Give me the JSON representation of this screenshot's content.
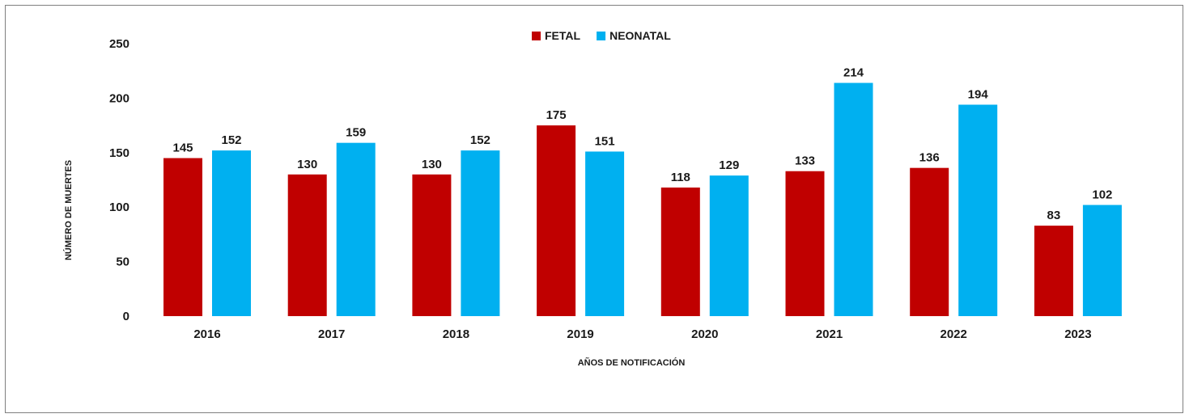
{
  "chart_data": {
    "type": "bar",
    "categories": [
      "2016",
      "2017",
      "2018",
      "2019",
      "2020",
      "2021",
      "2022",
      "2023"
    ],
    "series": [
      {
        "name": "FETAL",
        "color": "#c00000",
        "values": [
          145,
          130,
          130,
          175,
          118,
          133,
          136,
          83
        ]
      },
      {
        "name": "NEONATAL",
        "color": "#00b0f0",
        "values": [
          152,
          159,
          152,
          151,
          129,
          214,
          194,
          102
        ]
      }
    ],
    "title": "",
    "xlabel": "AÑOS DE NOTIFICACIÓN",
    "ylabel": "NÚMERO DE MUERTES",
    "ylim": [
      0,
      250
    ],
    "yticks": [
      0,
      50,
      100,
      150,
      200,
      250
    ],
    "grid": false,
    "legend_position": "top-center",
    "data_labels": true
  }
}
